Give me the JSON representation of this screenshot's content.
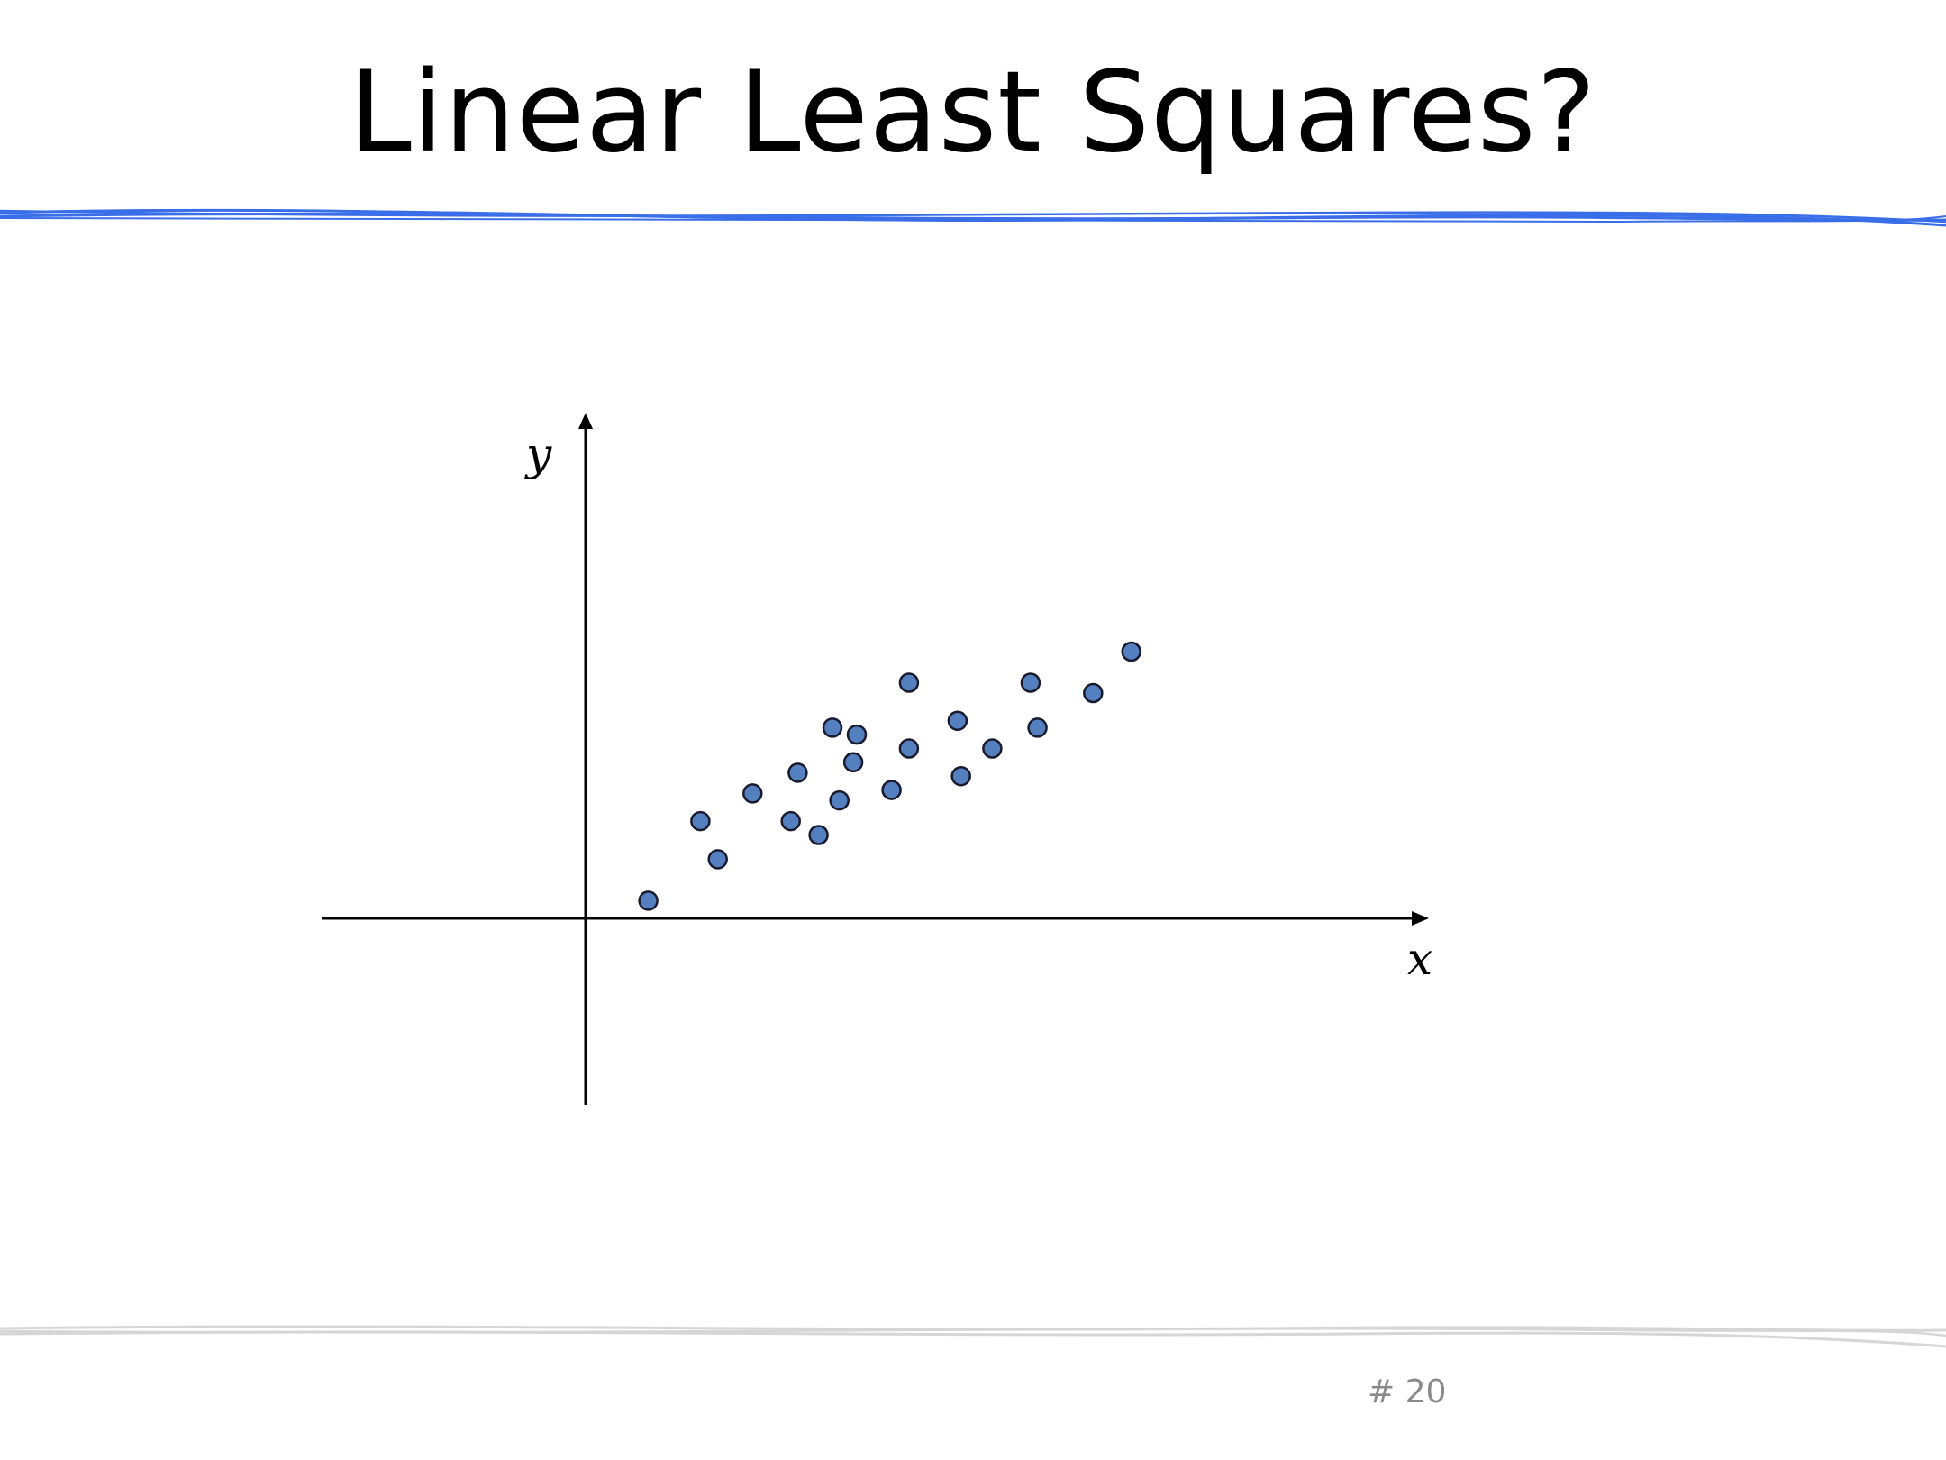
{
  "slide": {
    "title": "Linear Least Squares?",
    "page_number": "# 20"
  },
  "colors": {
    "accent_rule": "#3a6ee8",
    "footer_rule": "#d6d6d6",
    "point_fill": "#5580c0",
    "point_stroke": "#1a1a2e",
    "axis": "#000000"
  },
  "chart_data": {
    "type": "scatter",
    "xlabel": "x",
    "ylabel": "y",
    "xlim": [
      -0.75,
      2.4
    ],
    "ylim": [
      -0.54,
      1.46
    ],
    "grid": false,
    "legend": "none",
    "series": [
      {
        "points": [
          {
            "x": 0.19,
            "y": 0.05
          },
          {
            "x": 0.34,
            "y": 0.28
          },
          {
            "x": 0.39,
            "y": 0.17
          },
          {
            "x": 0.49,
            "y": 0.36
          },
          {
            "x": 0.6,
            "y": 0.28
          },
          {
            "x": 0.62,
            "y": 0.42
          },
          {
            "x": 0.68,
            "y": 0.24
          },
          {
            "x": 0.74,
            "y": 0.34
          },
          {
            "x": 0.72,
            "y": 0.55
          },
          {
            "x": 0.78,
            "y": 0.45
          },
          {
            "x": 0.79,
            "y": 0.53
          },
          {
            "x": 0.89,
            "y": 0.37
          },
          {
            "x": 0.94,
            "y": 0.68
          },
          {
            "x": 0.94,
            "y": 0.49
          },
          {
            "x": 1.08,
            "y": 0.57
          },
          {
            "x": 1.09,
            "y": 0.41
          },
          {
            "x": 1.18,
            "y": 0.49
          },
          {
            "x": 1.29,
            "y": 0.68
          },
          {
            "x": 1.31,
            "y": 0.55
          },
          {
            "x": 1.47,
            "y": 0.65
          },
          {
            "x": 1.58,
            "y": 0.77
          }
        ]
      }
    ]
  }
}
